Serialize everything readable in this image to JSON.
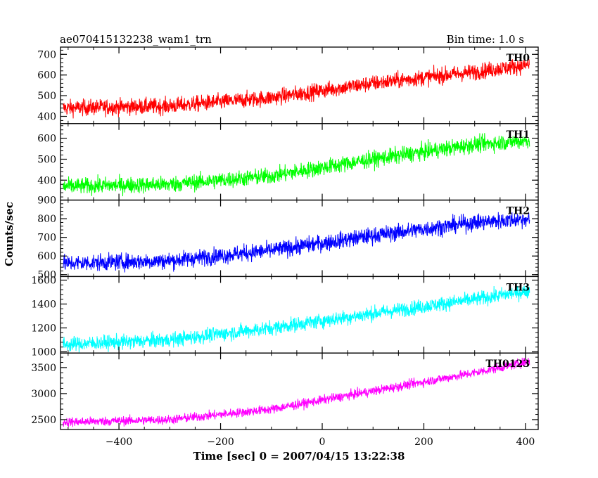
{
  "chart_data": {
    "type": "line",
    "title": "ae070415132238_wam1_trn",
    "subtitle": "Bin time: 1.0 s",
    "xlabel": "Time [sec] 0 = 2007/04/15 13:22:38",
    "ylabel": "Counts/sec",
    "xlim": [
      -515,
      425
    ],
    "xticks": [
      -400,
      -200,
      0,
      200,
      400
    ],
    "xtick_labels": [
      "−400",
      "−200",
      "0",
      "200",
      "400"
    ],
    "data_x_range": [
      -510,
      408
    ],
    "grid": false,
    "series": [
      {
        "name": "TH0",
        "color": "#ff0000",
        "ylim": [
          365,
          735
        ],
        "yticks": [
          400,
          500,
          600,
          700
        ],
        "trend": [
          [
            -510,
            440
          ],
          [
            -300,
            450
          ],
          [
            -100,
            490
          ],
          [
            100,
            560
          ],
          [
            300,
            615
          ],
          [
            408,
            650
          ]
        ],
        "noise_amplitude": 35
      },
      {
        "name": "TH1",
        "color": "#00ff00",
        "ylim": [
          305,
          670
        ],
        "yticks": [
          400,
          500,
          600
        ],
        "trend": [
          [
            -510,
            370
          ],
          [
            -300,
            380
          ],
          [
            -100,
            420
          ],
          [
            100,
            500
          ],
          [
            300,
            570
          ],
          [
            408,
            590
          ]
        ],
        "noise_amplitude": 35
      },
      {
        "name": "TH2",
        "color": "#0000ff",
        "ylim": [
          490,
          900
        ],
        "yticks": [
          500,
          600,
          700,
          800,
          900
        ],
        "trend": [
          [
            -510,
            560
          ],
          [
            -300,
            575
          ],
          [
            -100,
            630
          ],
          [
            100,
            710
          ],
          [
            300,
            780
          ],
          [
            408,
            800
          ]
        ],
        "noise_amplitude": 40
      },
      {
        "name": "TH3",
        "color": "#00ffff",
        "ylim": [
          990,
          1630
        ],
        "yticks": [
          1000,
          1200,
          1400,
          1600
        ],
        "trend": [
          [
            -510,
            1060
          ],
          [
            -300,
            1100
          ],
          [
            -100,
            1200
          ],
          [
            100,
            1320
          ],
          [
            300,
            1440
          ],
          [
            408,
            1510
          ]
        ],
        "noise_amplitude": 55
      },
      {
        "name": "TH0123",
        "color": "#ff00ff",
        "ylim": [
          2310,
          3780
        ],
        "yticks": [
          2500,
          3000,
          3500
        ],
        "ytick_labels": [
          "2500",
          "3000",
          "3500"
        ],
        "trend": [
          [
            -510,
            2450
          ],
          [
            -300,
            2500
          ],
          [
            -100,
            2700
          ],
          [
            100,
            3050
          ],
          [
            300,
            3400
          ],
          [
            408,
            3620
          ]
        ],
        "noise_amplitude": 80
      }
    ]
  }
}
